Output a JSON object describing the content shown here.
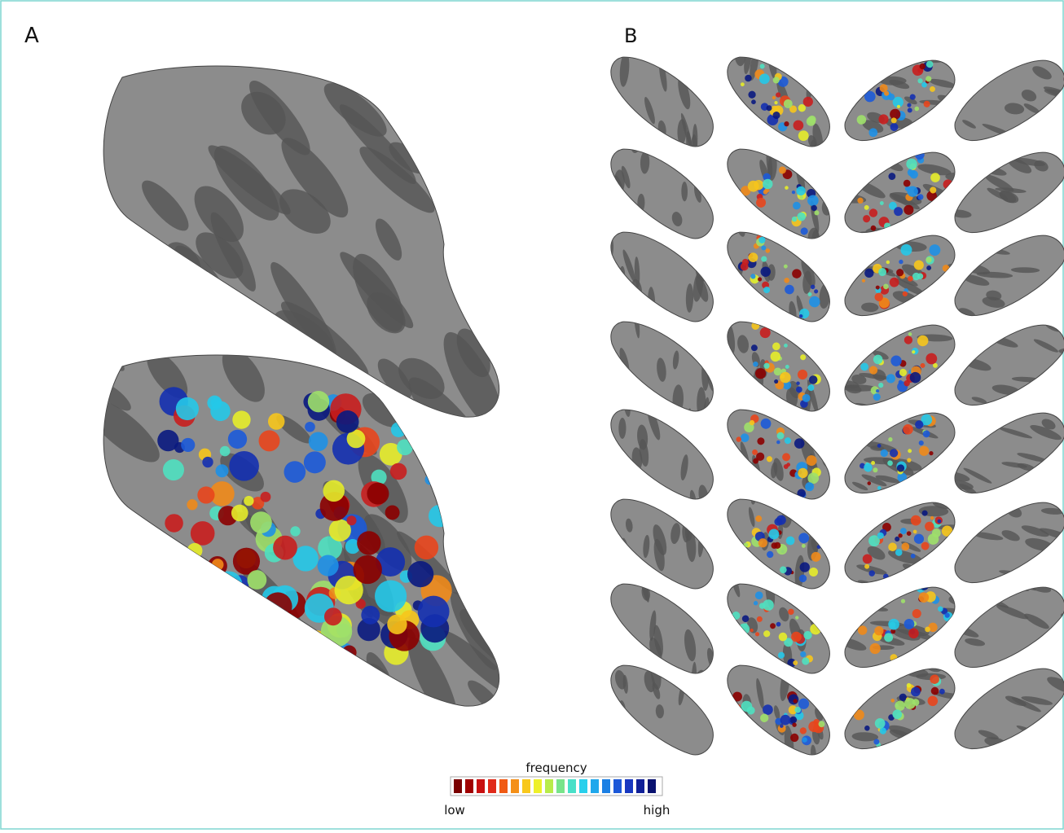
{
  "panels": [
    {
      "label": "A"
    },
    {
      "label": "B"
    }
  ],
  "colorbar": {
    "title": "frequency",
    "low": "low",
    "high": "high"
  }
}
